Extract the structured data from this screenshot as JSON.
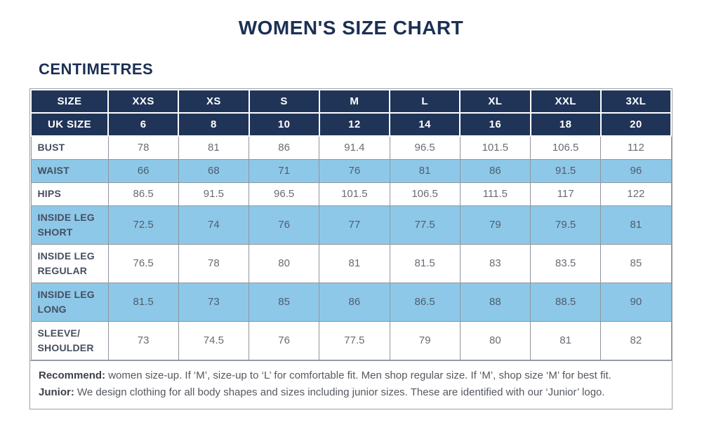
{
  "page": {
    "title": "WOMEN'S SIZE CHART",
    "units_heading": "CENTIMETRES"
  },
  "colors": {
    "navy_header": "#203458",
    "light_blue_row": "#8ec8e8",
    "heading_navy": "#1c3054",
    "grid_gray": "#8f959d"
  },
  "table": {
    "header": {
      "size_label": "SIZE",
      "sizes": [
        "XXS",
        "XS",
        "S",
        "M",
        "L",
        "XL",
        "XXL",
        "3XL"
      ],
      "uk_size_label": "UK SIZE",
      "uk_sizes": [
        "6",
        "8",
        "10",
        "12",
        "14",
        "16",
        "18",
        "20"
      ]
    },
    "rows": [
      {
        "label": "BUST",
        "values": [
          "78",
          "81",
          "86",
          "91.4",
          "96.5",
          "101.5",
          "106.5",
          "112"
        ]
      },
      {
        "label": "WAIST",
        "values": [
          "66",
          "68",
          "71",
          "76",
          "81",
          "86",
          "91.5",
          "96"
        ]
      },
      {
        "label": "HIPS",
        "values": [
          "86.5",
          "91.5",
          "96.5",
          "101.5",
          "106.5",
          "111.5",
          "117",
          "122"
        ]
      },
      {
        "label": "INSIDE LEG\nSHORT",
        "values": [
          "72.5",
          "74",
          "76",
          "77",
          "77.5",
          "79",
          "79.5",
          "81"
        ]
      },
      {
        "label": "INSIDE LEG\nREGULAR",
        "values": [
          "76.5",
          "78",
          "80",
          "81",
          "81.5",
          "83",
          "83.5",
          "85"
        ]
      },
      {
        "label": "INSIDE LEG\nLONG",
        "values": [
          "81.5",
          "73",
          "85",
          "86",
          "86.5",
          "88",
          "88.5",
          "90"
        ]
      },
      {
        "label": "SLEEVE/\nSHOULDER",
        "values": [
          "73",
          "74.5",
          "76",
          "77.5",
          "79",
          "80",
          "81",
          "82"
        ]
      }
    ]
  },
  "footer": {
    "recommend_label": "Recommend:",
    "recommend_text": " women size-up. If ‘M’, size-up to ‘L’ for comfortable fit. Men shop regular size. If ‘M’, shop size ‘M’ for best fit.",
    "junior_label": "Junior:",
    "junior_text": " We design clothing for all body shapes and sizes including junior sizes. These are identified with our ‘Junior’ logo."
  }
}
